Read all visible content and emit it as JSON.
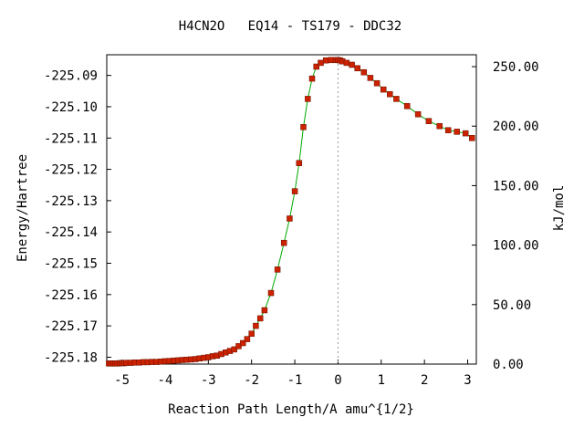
{
  "chart_data": {
    "type": "line",
    "title": "H4CN2O   EQ14 - TS179 - DDC32",
    "xlabel": "Reaction Path Length/A amu^{1/2}",
    "ylabel": "Energy/Hartree",
    "ylabel_right": "kJ/mol",
    "xlim": [
      -5.35,
      3.2
    ],
    "ylim": [
      -225.1822,
      -225.0834
    ],
    "ylim_right_kjmol": [
      0,
      260
    ],
    "x_ticks": [
      "-5",
      "-4",
      "-3",
      "-2",
      "-1",
      "0",
      "1",
      "2",
      "3"
    ],
    "x_tick_values": [
      -5,
      -4,
      -3,
      -2,
      -1,
      0,
      1,
      2,
      3
    ],
    "y_ticks": [
      "-225.09",
      "-225.10",
      "-225.11",
      "-225.12",
      "-225.13",
      "-225.14",
      "-225.15",
      "-225.16",
      "-225.17",
      "-225.18"
    ],
    "y_tick_values": [
      -225.09,
      -225.1,
      -225.11,
      -225.12,
      -225.13,
      -225.14,
      -225.15,
      -225.16,
      -225.17,
      -225.18
    ],
    "y_right_ticks": [
      "0.00",
      "50.00",
      "100.00",
      "150.00",
      "200.00",
      "250.00"
    ],
    "y_right_tick_values": [
      0,
      50,
      100,
      150,
      200,
      250
    ],
    "ts_marker_x": 0,
    "grid": false,
    "line_color": "#00aa00",
    "marker_color": "#cc2200",
    "ts_line_color": "#999999",
    "series": [
      {
        "x": [
          -5.3,
          -5.25,
          -5.2,
          -5.15,
          -5.1,
          -5.05,
          -5.0,
          -4.95,
          -4.9,
          -4.8,
          -4.7,
          -4.6,
          -4.5,
          -4.4,
          -4.3,
          -4.2,
          -4.1,
          -4.0,
          -3.9,
          -3.8,
          -3.7,
          -3.6,
          -3.5,
          -3.4,
          -3.3,
          -3.2,
          -3.1,
          -3.0,
          -2.9,
          -2.8,
          -2.7,
          -2.6,
          -2.5,
          -2.4,
          -2.3,
          -2.2,
          -2.1,
          -2.0,
          -1.9,
          -1.8,
          -1.7,
          -1.55,
          -1.4,
          -1.25,
          -1.12,
          -1.0,
          -0.9,
          -0.8,
          -0.7,
          -0.6,
          -0.5,
          -0.4,
          -0.28,
          -0.16,
          -0.05,
          0.0,
          0.05,
          0.1,
          0.2,
          0.32,
          0.45,
          0.6,
          0.75,
          0.9,
          1.05,
          1.2,
          1.35,
          1.6,
          1.85,
          2.1,
          2.35,
          2.55,
          2.75,
          2.95,
          3.1
        ],
        "y": [
          -225.182,
          -225.182,
          -225.182,
          -225.182,
          -225.182,
          -225.1819,
          -225.1819,
          -225.1819,
          -225.1818,
          -225.1818,
          -225.1817,
          -225.1817,
          -225.1816,
          -225.1816,
          -225.1815,
          -225.1815,
          -225.1814,
          -225.1813,
          -225.1812,
          -225.1811,
          -225.181,
          -225.1809,
          -225.1808,
          -225.1807,
          -225.1806,
          -225.1804,
          -225.1802,
          -225.18,
          -225.1797,
          -225.1795,
          -225.179,
          -225.1785,
          -225.178,
          -225.1775,
          -225.1765,
          -225.1755,
          -225.1742,
          -225.1725,
          -225.17,
          -225.1676,
          -225.165,
          -225.1595,
          -225.152,
          -225.1435,
          -225.1357,
          -225.127,
          -225.118,
          -225.1065,
          -225.0975,
          -225.091,
          -225.0872,
          -225.086,
          -225.0852,
          -225.0851,
          -225.0851,
          -225.0851,
          -225.0852,
          -225.0855,
          -225.086,
          -225.0866,
          -225.0877,
          -225.089,
          -225.0908,
          -225.0925,
          -225.0945,
          -225.096,
          -225.0975,
          -225.0998,
          -225.1024,
          -225.1046,
          -225.1062,
          -225.1075,
          -225.108,
          -225.1085,
          -225.11
        ]
      }
    ]
  }
}
